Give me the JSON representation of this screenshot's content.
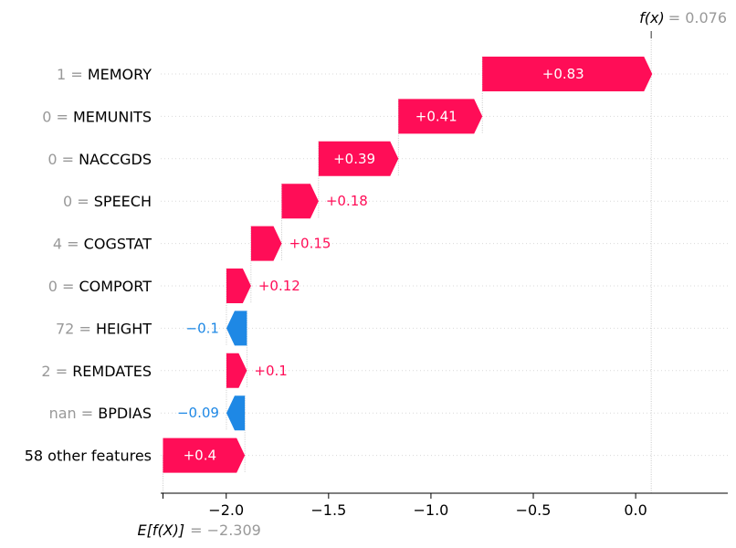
{
  "chart_data": {
    "type": "waterfall",
    "base_value": -2.309,
    "output_value": 0.076,
    "base_label": "E[f(X)]",
    "base_label_value": "= −2.309",
    "output_label": "f(x)",
    "output_label_value": "= 0.076",
    "xlim": [
      -2.32,
      0.45
    ],
    "x_ticks": [
      -2.0,
      -1.5,
      -1.0,
      -0.5,
      0.0
    ],
    "x_tick_labels": [
      "−2.0",
      "−1.5",
      "−1.0",
      "−0.5",
      "0.0"
    ],
    "grid": "horizontal dotted",
    "colors": {
      "positive": "#ff0d57",
      "negative": "#1e88e5",
      "feature_value": "#999999",
      "axis": "#000000"
    },
    "features": [
      {
        "value": "1",
        "name": "MEMORY",
        "shap": 0.83,
        "label": "+0.83"
      },
      {
        "value": "0",
        "name": "MEMUNITS",
        "shap": 0.41,
        "label": "+0.41"
      },
      {
        "value": "0",
        "name": "NACCGDS",
        "shap": 0.39,
        "label": "+0.39"
      },
      {
        "value": "0",
        "name": "SPEECH",
        "shap": 0.18,
        "label": "+0.18"
      },
      {
        "value": "4",
        "name": "COGSTAT",
        "shap": 0.15,
        "label": "+0.15"
      },
      {
        "value": "0",
        "name": "COMPORT",
        "shap": 0.12,
        "label": "+0.12"
      },
      {
        "value": "72",
        "name": "HEIGHT",
        "shap": -0.1,
        "label": "−0.1"
      },
      {
        "value": "2",
        "name": "REMDATES",
        "shap": 0.1,
        "label": "+0.1"
      },
      {
        "value": "nan",
        "name": "BPDIAS",
        "shap": -0.09,
        "label": "−0.09"
      },
      {
        "value": "",
        "name": "58 other features",
        "shap": 0.4,
        "label": "+0.4"
      }
    ]
  }
}
